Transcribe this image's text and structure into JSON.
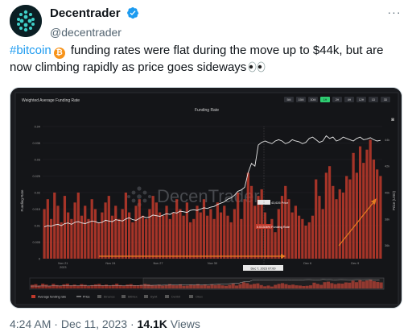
{
  "tweet": {
    "display_name": "Decentrader",
    "handle": "@decentrader",
    "more_label": "···",
    "hashtag": "#bitcoin",
    "text_main": " funding rates were flat during the move up to $44k, but are now climbing rapidly as price goes sideways",
    "time": "4:24 AM",
    "separator": "·",
    "date": "Dec 11, 2023",
    "views_count": "14.1K",
    "views_label": "Views"
  },
  "colors": {
    "link": "#1d9bf0",
    "verified": "#1d9bf0",
    "chart_bg": "#1a1b1f",
    "bar": "#c0392b",
    "price_line": "#e8e8e8",
    "arrow": "#e67e22"
  },
  "icons": {
    "verified": "verified-badge-icon",
    "bitcoin": "bitcoin-icon",
    "eyes": "eyes-emoji-icon",
    "more": "more-options-icon"
  },
  "chart_panel": {
    "panel_title": "Weighted Average Funding Rate",
    "chart_title": "Funding Rate",
    "ranges": [
      "5M",
      "15M",
      "30M",
      "1H",
      "2H",
      "4H",
      "12H",
      "1D",
      "3D"
    ],
    "active_range": "1H",
    "left_axis_label": "Funding Rate",
    "right_axis_label": "Price (USD)",
    "watermark": "DecenTrader",
    "hover_date": "Dec 7, 2023 07:00",
    "tooltip_price": "43,626 Price",
    "tooltip_rate": "0.01306% Funding Rate",
    "legend": [
      "Average funding rate",
      "Price",
      "Binance",
      "BitMex",
      "Bybit",
      "Deribit",
      "Okex"
    ],
    "nav_icons": [
      "camera-icon",
      "zoom-icon"
    ]
  },
  "chart_data": {
    "type": "bar",
    "title": "Funding Rate",
    "x_ticks": [
      "Nov 21\n2023",
      "Nov 24",
      "Nov 27",
      "Nov 30",
      "Dec 3, 2023 07:00",
      "Dec 6",
      "Dec 9"
    ],
    "left_axis": {
      "label": "Funding Rate",
      "ticks": [
        "0.04",
        "0.035",
        "0.03",
        "0.025",
        "0.02",
        "0.015",
        "0.01",
        "0.005",
        "0"
      ]
    },
    "right_axis": {
      "label": "Price (USD)",
      "ticks": [
        "44k",
        "42k",
        "40k",
        "38k",
        "36k"
      ],
      "ylim": [
        35000,
        45000
      ]
    },
    "series": [
      {
        "name": "Average funding rate",
        "values": [
          0.015,
          0.018,
          0.012,
          0.02,
          0.016,
          0.011,
          0.019,
          0.014,
          0.012,
          0.017,
          0.02,
          0.013,
          0.016,
          0.012,
          0.018,
          0.015,
          0.011,
          0.014,
          0.017,
          0.019,
          0.013,
          0.016,
          0.012,
          0.015,
          0.02,
          0.014,
          0.011,
          0.016,
          0.018,
          0.013,
          0.012,
          0.015,
          0.019,
          0.017,
          0.014,
          0.013,
          0.016,
          0.012,
          0.014,
          0.018,
          0.015,
          0.013,
          0.017,
          0.011,
          0.012,
          0.016,
          0.014,
          0.018,
          0.013,
          0.015,
          0.012,
          0.017,
          0.014,
          0.016,
          0.013,
          0.011,
          0.015,
          0.02,
          0.012,
          0.018,
          0.026,
          0.022,
          0.016,
          0.019,
          0.021,
          0.014,
          0.009,
          0.012,
          0.008,
          0.015,
          0.019,
          0.022,
          0.018,
          0.014,
          0.016,
          0.013,
          0.012,
          0.01,
          0.011,
          0.013,
          0.024,
          0.019,
          0.015,
          0.026,
          0.028,
          0.022,
          0.018,
          0.021,
          0.02,
          0.025,
          0.024,
          0.032,
          0.026,
          0.034,
          0.029,
          0.033,
          0.036,
          0.03,
          0.027,
          0.025
        ]
      },
      {
        "name": "Price",
        "values": [
          37400,
          37500,
          37450,
          37550,
          37600,
          37500,
          37650,
          37700,
          37600,
          37750,
          37800,
          37700,
          37650,
          37750,
          37850,
          37800,
          37700,
          37750,
          37900,
          37850,
          37800,
          37950,
          37900,
          37850,
          38000,
          38100,
          37950,
          37900,
          38050,
          38200,
          38100,
          38150,
          38300,
          38250,
          38200,
          38300,
          38400,
          38350,
          38500,
          38450,
          38600,
          38550,
          38500,
          38650,
          38700,
          38650,
          38750,
          38850,
          38800,
          38900,
          38950,
          39100,
          39200,
          39300,
          39500,
          39600,
          39800,
          40100,
          40200,
          40400,
          41500,
          42200,
          42000,
          43600,
          43800,
          43900,
          43800,
          43700,
          43900,
          44000,
          43900,
          43700,
          43800,
          44000,
          43900,
          43850,
          43700,
          43800,
          44100,
          44200,
          44000,
          43800,
          43900,
          44300,
          44100,
          44200,
          43900,
          44000,
          44200,
          44100,
          44000,
          43900,
          44100,
          44200,
          44000,
          44050,
          44150,
          44000,
          43900,
          43950
        ]
      }
    ],
    "ylim": [
      0,
      0.04
    ],
    "legend_position": "bottom",
    "grid": true
  }
}
